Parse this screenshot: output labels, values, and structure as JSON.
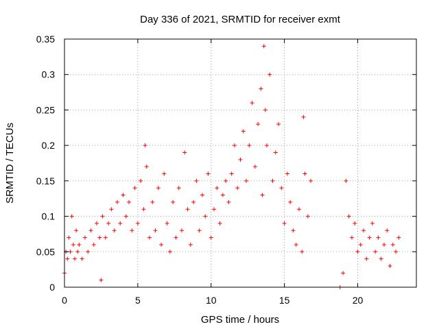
{
  "chart_data": {
    "type": "scatter",
    "title": "Day 336 of 2021, SRMTID for receiver exmt",
    "xlabel": "GPS time / hours",
    "ylabel": "SRMTID / TECUs",
    "xlim": [
      0,
      24
    ],
    "ylim": [
      0,
      0.35
    ],
    "xticks": [
      0,
      5,
      10,
      15,
      20
    ],
    "yticks": [
      0,
      0.05,
      0.1,
      0.15,
      0.2,
      0.25,
      0.3,
      0.35
    ],
    "xtick_labels": [
      "0",
      "5",
      "10",
      "15",
      "20"
    ],
    "ytick_labels": [
      "0",
      "0.05",
      "0.1",
      "0.15",
      "0.2",
      "0.25",
      "0.3",
      "0.35"
    ],
    "grid": true,
    "marker": "+",
    "color": "#ff0000",
    "series": [
      {
        "name": "SRMTID",
        "x": [
          0.0,
          0.1,
          0.2,
          0.3,
          0.4,
          0.5,
          0.6,
          0.7,
          0.8,
          0.9,
          1.0,
          1.2,
          1.4,
          1.6,
          1.8,
          2.0,
          2.2,
          2.4,
          2.5,
          2.6,
          2.8,
          3.0,
          3.2,
          3.4,
          3.6,
          3.8,
          4.0,
          4.2,
          4.4,
          4.6,
          4.8,
          5.0,
          5.2,
          5.4,
          5.5,
          5.6,
          5.8,
          6.0,
          6.2,
          6.4,
          6.6,
          6.8,
          7.0,
          7.2,
          7.4,
          7.6,
          7.8,
          8.0,
          8.2,
          8.4,
          8.6,
          8.8,
          9.0,
          9.2,
          9.4,
          9.6,
          9.8,
          10.0,
          10.2,
          10.4,
          10.6,
          10.8,
          11.0,
          11.2,
          11.4,
          11.6,
          11.8,
          12.0,
          12.2,
          12.4,
          12.6,
          12.8,
          13.0,
          13.2,
          13.4,
          13.5,
          13.6,
          13.7,
          13.8,
          14.0,
          14.2,
          14.4,
          14.6,
          14.8,
          15.0,
          15.2,
          15.4,
          15.6,
          15.8,
          16.0,
          16.2,
          16.3,
          16.4,
          16.6,
          16.8,
          18.8,
          19.0,
          19.2,
          19.4,
          19.6,
          19.8,
          20.0,
          20.2,
          20.4,
          20.6,
          20.8,
          21.0,
          21.2,
          21.4,
          21.6,
          21.8,
          22.0,
          22.2,
          22.4,
          22.6,
          22.8
        ],
        "y": [
          0.02,
          0.05,
          0.04,
          0.07,
          0.05,
          0.1,
          0.06,
          0.04,
          0.08,
          0.05,
          0.06,
          0.04,
          0.07,
          0.05,
          0.08,
          0.06,
          0.09,
          0.07,
          0.01,
          0.1,
          0.07,
          0.09,
          0.11,
          0.08,
          0.12,
          0.09,
          0.13,
          0.1,
          0.12,
          0.08,
          0.14,
          0.09,
          0.15,
          0.11,
          0.2,
          0.17,
          0.07,
          0.12,
          0.08,
          0.14,
          0.06,
          0.16,
          0.09,
          0.05,
          0.12,
          0.07,
          0.14,
          0.08,
          0.19,
          0.11,
          0.06,
          0.12,
          0.15,
          0.08,
          0.13,
          0.1,
          0.16,
          0.07,
          0.11,
          0.14,
          0.09,
          0.13,
          0.15,
          0.12,
          0.16,
          0.2,
          0.14,
          0.18,
          0.22,
          0.15,
          0.2,
          0.26,
          0.17,
          0.23,
          0.28,
          0.13,
          0.34,
          0.25,
          0.2,
          0.3,
          0.15,
          0.19,
          0.23,
          0.14,
          0.09,
          0.16,
          0.12,
          0.08,
          0.06,
          0.11,
          0.05,
          0.24,
          0.16,
          0.1,
          0.15,
          0.0,
          0.02,
          0.15,
          0.1,
          0.07,
          0.09,
          0.05,
          0.06,
          0.08,
          0.04,
          0.07,
          0.09,
          0.05,
          0.07,
          0.04,
          0.06,
          0.08,
          0.03,
          0.06,
          0.05,
          0.07
        ]
      }
    ]
  }
}
